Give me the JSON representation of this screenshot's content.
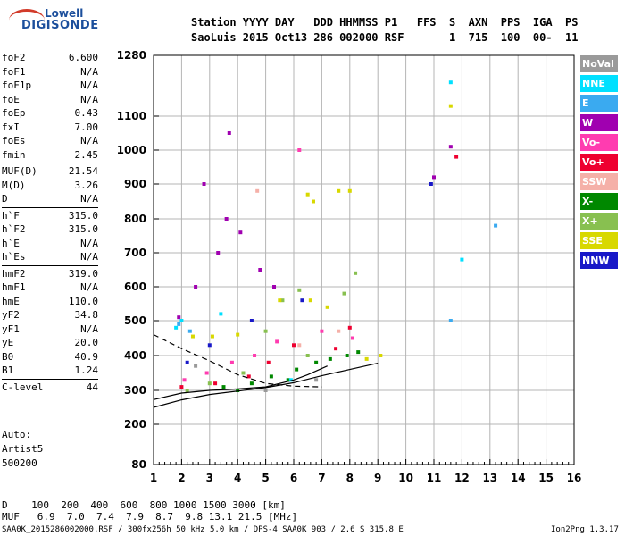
{
  "logo": {
    "line1": "Lowell",
    "line2": "DIGISONDE"
  },
  "header": {
    "line1": "Station YYYY DAY   DDD HHMMSS P1   FFS  S  AXN  PPS  IGA  PS",
    "line2": "SaoLuis 2015 Oct13 286 002000 RSF       1  715  100  00-  11"
  },
  "params": [
    {
      "k": "foF2",
      "v": "6.600"
    },
    {
      "k": "foF1",
      "v": "N/A"
    },
    {
      "k": "foF1p",
      "v": "N/A"
    },
    {
      "k": "foE",
      "v": "N/A"
    },
    {
      "k": "foEp",
      "v": "0.43"
    },
    {
      "k": "fxI",
      "v": "7.00"
    },
    {
      "k": "foEs",
      "v": "N/A"
    },
    {
      "k": "fmin",
      "v": "2.45"
    },
    {
      "k": "MUF(D)",
      "v": "21.54",
      "sep": true
    },
    {
      "k": "M(D)",
      "v": "3.26"
    },
    {
      "k": "D",
      "v": "N/A"
    },
    {
      "k": "h`F",
      "v": "315.0",
      "sep": true
    },
    {
      "k": "h`F2",
      "v": "315.0"
    },
    {
      "k": "h`E",
      "v": "N/A"
    },
    {
      "k": "h`Es",
      "v": "N/A"
    },
    {
      "k": "hmF2",
      "v": "319.0",
      "sep": true
    },
    {
      "k": "hmF1",
      "v": "N/A"
    },
    {
      "k": "hmE",
      "v": "110.0"
    },
    {
      "k": "yF2",
      "v": "34.8"
    },
    {
      "k": "yF1",
      "v": "N/A"
    },
    {
      "k": "yE",
      "v": "20.0"
    },
    {
      "k": "B0",
      "v": "40.9"
    },
    {
      "k": "B1",
      "v": "1.24"
    },
    {
      "k": "C-level",
      "v": "44",
      "sep": true
    }
  ],
  "auto": {
    "line1": "Auto:",
    "line2": "Artist5",
    "line3": "500200"
  },
  "legend": [
    {
      "label": "NoVal",
      "color": "#9a9a9a"
    },
    {
      "label": "NNE",
      "color": "#00e0ff"
    },
    {
      "label": "E",
      "color": "#3aaaf0"
    },
    {
      "label": "W",
      "color": "#a000b0"
    },
    {
      "label": "Vo-",
      "color": "#ff3cb0"
    },
    {
      "label": "Vo+",
      "color": "#ee0030"
    },
    {
      "label": "SSW",
      "color": "#f5b0a8"
    },
    {
      "label": "X-",
      "color": "#008800"
    },
    {
      "label": "X+",
      "color": "#88c050"
    },
    {
      "label": "SSE",
      "color": "#d8d800"
    },
    {
      "label": "NNW",
      "color": "#1818c8"
    }
  ],
  "bottom": {
    "d_line": "D    100  200  400  600  800 1000 1500 3000 [km]",
    "muf_line": "MUF   6.9  7.0  7.4  7.9  8.7  9.8 13.1 21.5 [MHz]",
    "footer_left": "SAA0K_2015286002000.RSF / 300fx256h 50 kHz 5.0 km / DPS-4 SAA0K 903 / 2.6 S 315.8 E",
    "footer_right": "Ion2Png 1.3.17"
  },
  "chart_data": {
    "type": "scatter",
    "x_ticks": [
      1,
      2,
      3,
      4,
      5,
      6,
      7,
      8,
      9,
      10,
      11,
      12,
      13,
      14,
      15,
      16
    ],
    "y_ticks": [
      80,
      200,
      300,
      400,
      500,
      600,
      700,
      800,
      900,
      1000,
      1100,
      1280
    ],
    "xlim": [
      1,
      16
    ],
    "ylim": [
      80,
      1280
    ],
    "grid": true,
    "legend_position": "right",
    "series": [
      {
        "name": "X-",
        "color": "#008800",
        "points": [
          [
            4.5,
            320
          ],
          [
            5.2,
            340
          ],
          [
            6.1,
            360
          ],
          [
            6.8,
            380
          ],
          [
            7.3,
            390
          ],
          [
            3.5,
            310
          ],
          [
            4.0,
            300
          ],
          [
            5.8,
            330
          ],
          [
            7.9,
            400
          ],
          [
            8.3,
            410
          ]
        ]
      },
      {
        "name": "X+",
        "color": "#88c050",
        "points": [
          [
            2.2,
            300
          ],
          [
            3.0,
            320
          ],
          [
            4.2,
            350
          ],
          [
            5.0,
            470
          ],
          [
            5.6,
            560
          ],
          [
            6.2,
            590
          ],
          [
            7.8,
            580
          ],
          [
            8.2,
            640
          ],
          [
            6.5,
            400
          ]
        ]
      },
      {
        "name": "SSE",
        "color": "#d8d800",
        "points": [
          [
            2.4,
            455
          ],
          [
            3.1,
            455
          ],
          [
            4.0,
            460
          ],
          [
            5.5,
            560
          ],
          [
            6.6,
            560
          ],
          [
            7.2,
            540
          ],
          [
            8.6,
            390
          ],
          [
            9.1,
            400
          ],
          [
            6.5,
            870
          ],
          [
            7.6,
            880
          ],
          [
            8.0,
            880
          ],
          [
            6.7,
            850
          ],
          [
            11.6,
            1130
          ]
        ]
      },
      {
        "name": "W",
        "color": "#a000b0",
        "points": [
          [
            1.9,
            510
          ],
          [
            2.5,
            600
          ],
          [
            3.3,
            700
          ],
          [
            3.6,
            800
          ],
          [
            4.1,
            760
          ],
          [
            4.8,
            650
          ],
          [
            5.3,
            600
          ],
          [
            2.8,
            900
          ],
          [
            3.7,
            1050
          ],
          [
            11.6,
            1010
          ],
          [
            11.0,
            920
          ]
        ]
      },
      {
        "name": "Vo-",
        "color": "#ff3cb0",
        "points": [
          [
            2.1,
            330
          ],
          [
            2.9,
            350
          ],
          [
            3.8,
            380
          ],
          [
            4.6,
            400
          ],
          [
            5.4,
            440
          ],
          [
            7.0,
            470
          ],
          [
            8.1,
            450
          ],
          [
            6.2,
            1000
          ]
        ]
      },
      {
        "name": "Vo+",
        "color": "#ee0030",
        "points": [
          [
            2.0,
            310
          ],
          [
            3.2,
            320
          ],
          [
            4.4,
            340
          ],
          [
            5.1,
            380
          ],
          [
            6.0,
            430
          ],
          [
            7.5,
            420
          ],
          [
            8.0,
            480
          ],
          [
            11.8,
            980
          ]
        ]
      },
      {
        "name": "NNE",
        "color": "#00e0ff",
        "points": [
          [
            1.8,
            480
          ],
          [
            2.0,
            500
          ],
          [
            3.4,
            520
          ],
          [
            5.9,
            330
          ],
          [
            11.6,
            1200
          ],
          [
            12.0,
            680
          ]
        ]
      },
      {
        "name": "E",
        "color": "#3aaaf0",
        "points": [
          [
            1.9,
            490
          ],
          [
            2.3,
            470
          ],
          [
            11.6,
            500
          ],
          [
            13.2,
            780
          ]
        ]
      },
      {
        "name": "NNW",
        "color": "#1818c8",
        "points": [
          [
            2.2,
            380
          ],
          [
            3.0,
            430
          ],
          [
            4.5,
            500
          ],
          [
            6.3,
            560
          ],
          [
            10.9,
            900
          ]
        ]
      },
      {
        "name": "SSW",
        "color": "#f5b0a8",
        "points": [
          [
            4.7,
            880
          ],
          [
            6.2,
            430
          ],
          [
            7.6,
            470
          ]
        ]
      },
      {
        "name": "NoVal",
        "color": "#9a9a9a",
        "points": [
          [
            2.5,
            370
          ],
          [
            5.0,
            300
          ],
          [
            6.8,
            330
          ]
        ]
      }
    ],
    "curves": [
      {
        "style": "solid",
        "points": [
          [
            1.0,
            250
          ],
          [
            2.0,
            272
          ],
          [
            3.0,
            288
          ],
          [
            4.0,
            298
          ],
          [
            5.0,
            308
          ],
          [
            6.0,
            322
          ],
          [
            7.0,
            342
          ],
          [
            8.0,
            360
          ],
          [
            9.0,
            378
          ]
        ]
      },
      {
        "style": "solid",
        "points": [
          [
            1.0,
            273
          ],
          [
            2.0,
            292
          ],
          [
            3.0,
            300
          ],
          [
            4.0,
            304
          ],
          [
            5.0,
            310
          ],
          [
            6.0,
            330
          ],
          [
            6.5,
            345
          ],
          [
            7.2,
            370
          ]
        ]
      },
      {
        "style": "dashed",
        "points": [
          [
            1.0,
            460
          ],
          [
            2.0,
            420
          ],
          [
            3.0,
            385
          ],
          [
            4.0,
            345
          ],
          [
            5.0,
            320
          ],
          [
            6.0,
            312
          ],
          [
            7.0,
            310
          ]
        ]
      }
    ]
  }
}
